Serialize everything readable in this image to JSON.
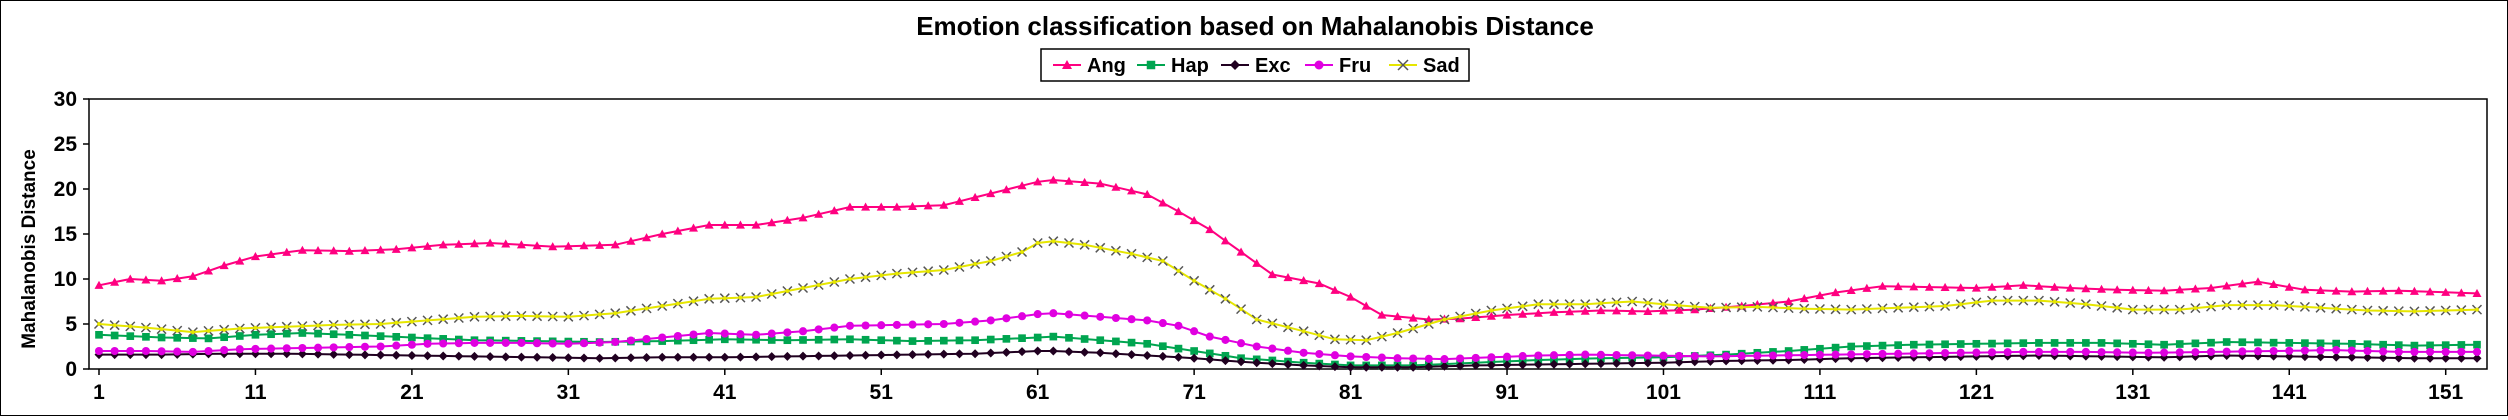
{
  "chart_data": {
    "type": "line",
    "title": "Emotion classification based on Mahalanobis Distance",
    "xlabel": "",
    "ylabel": "Mahalanobis  Distance",
    "xlim": [
      1,
      153
    ],
    "ylim": [
      0,
      30
    ],
    "yticks": [
      0,
      5,
      10,
      15,
      20,
      25,
      30
    ],
    "xticks": [
      1,
      11,
      21,
      31,
      41,
      51,
      61,
      71,
      81,
      91,
      101,
      111,
      121,
      131,
      141,
      151
    ],
    "grid": false,
    "legend_position": "top-center",
    "series": [
      {
        "name": "Ang",
        "color": "#ff0080",
        "marker": "triangle",
        "points": [
          [
            1,
            9.3
          ],
          [
            3,
            10
          ],
          [
            5,
            9.8
          ],
          [
            7,
            10.3
          ],
          [
            9,
            11.5
          ],
          [
            11,
            12.5
          ],
          [
            14,
            13.2
          ],
          [
            17,
            13.1
          ],
          [
            20,
            13.3
          ],
          [
            23,
            13.8
          ],
          [
            26,
            14
          ],
          [
            30,
            13.6
          ],
          [
            34,
            13.8
          ],
          [
            37,
            15
          ],
          [
            40,
            16
          ],
          [
            43,
            16
          ],
          [
            46,
            16.8
          ],
          [
            49,
            18
          ],
          [
            52,
            18
          ],
          [
            55,
            18.2
          ],
          [
            58,
            19.5
          ],
          [
            61,
            20.8
          ],
          [
            62,
            21
          ],
          [
            65,
            20.6
          ],
          [
            68,
            19.4
          ],
          [
            70,
            17.5
          ],
          [
            72,
            15.5
          ],
          [
            74,
            13
          ],
          [
            76,
            10.5
          ],
          [
            79,
            9.5
          ],
          [
            81,
            8
          ],
          [
            83,
            6
          ],
          [
            86,
            5.5
          ],
          [
            88,
            5.6
          ],
          [
            91,
            6
          ],
          [
            94,
            6.3
          ],
          [
            97,
            6.5
          ],
          [
            100,
            6.4
          ],
          [
            103,
            6.6
          ],
          [
            106,
            7
          ],
          [
            109,
            7.5
          ],
          [
            112,
            8.5
          ],
          [
            115,
            9.2
          ],
          [
            118,
            9.1
          ],
          [
            121,
            9
          ],
          [
            124,
            9.3
          ],
          [
            127,
            9
          ],
          [
            130,
            8.8
          ],
          [
            133,
            8.7
          ],
          [
            136,
            9
          ],
          [
            139,
            9.7
          ],
          [
            142,
            8.8
          ],
          [
            145,
            8.6
          ],
          [
            148,
            8.7
          ],
          [
            153,
            8.4
          ]
        ]
      },
      {
        "name": "Hap",
        "color": "#00a550",
        "marker": "square",
        "points": [
          [
            1,
            3.8
          ],
          [
            5,
            3.5
          ],
          [
            8,
            3.4
          ],
          [
            11,
            3.8
          ],
          [
            14,
            4
          ],
          [
            17,
            3.8
          ],
          [
            21,
            3.5
          ],
          [
            25,
            3.2
          ],
          [
            29,
            3.1
          ],
          [
            33,
            3
          ],
          [
            37,
            3.1
          ],
          [
            41,
            3.3
          ],
          [
            45,
            3.2
          ],
          [
            49,
            3.3
          ],
          [
            53,
            3.1
          ],
          [
            57,
            3.2
          ],
          [
            61,
            3.5
          ],
          [
            62,
            3.6
          ],
          [
            65,
            3.2
          ],
          [
            68,
            2.8
          ],
          [
            71,
            2
          ],
          [
            74,
            1.2
          ],
          [
            78,
            0.7
          ],
          [
            81,
            0.4
          ],
          [
            85,
            0.4
          ],
          [
            89,
            0.7
          ],
          [
            93,
            1
          ],
          [
            97,
            1.2
          ],
          [
            101,
            1.3
          ],
          [
            105,
            1.6
          ],
          [
            109,
            2
          ],
          [
            113,
            2.5
          ],
          [
            117,
            2.7
          ],
          [
            121,
            2.8
          ],
          [
            125,
            2.9
          ],
          [
            129,
            2.9
          ],
          [
            133,
            2.7
          ],
          [
            137,
            3
          ],
          [
            141,
            2.9
          ],
          [
            145,
            2.8
          ],
          [
            149,
            2.6
          ],
          [
            153,
            2.7
          ]
        ]
      },
      {
        "name": "Exc",
        "color": "#200020",
        "marker": "diamond",
        "points": [
          [
            1,
            1.6
          ],
          [
            5,
            1.6
          ],
          [
            9,
            1.7
          ],
          [
            13,
            1.7
          ],
          [
            17,
            1.6
          ],
          [
            21,
            1.5
          ],
          [
            25,
            1.4
          ],
          [
            29,
            1.3
          ],
          [
            33,
            1.2
          ],
          [
            37,
            1.3
          ],
          [
            41,
            1.3
          ],
          [
            45,
            1.4
          ],
          [
            49,
            1.5
          ],
          [
            53,
            1.6
          ],
          [
            57,
            1.7
          ],
          [
            61,
            2
          ],
          [
            62,
            2
          ],
          [
            65,
            1.8
          ],
          [
            68,
            1.5
          ],
          [
            71,
            1.2
          ],
          [
            74,
            0.8
          ],
          [
            78,
            0.4
          ],
          [
            81,
            0.2
          ],
          [
            85,
            0.2
          ],
          [
            89,
            0.4
          ],
          [
            93,
            0.5
          ],
          [
            97,
            0.6
          ],
          [
            101,
            0.7
          ],
          [
            105,
            0.9
          ],
          [
            109,
            1
          ],
          [
            113,
            1.2
          ],
          [
            117,
            1.3
          ],
          [
            121,
            1.4
          ],
          [
            125,
            1.5
          ],
          [
            129,
            1.4
          ],
          [
            133,
            1.3
          ],
          [
            137,
            1.5
          ],
          [
            141,
            1.4
          ],
          [
            145,
            1.3
          ],
          [
            149,
            1.2
          ],
          [
            153,
            1.2
          ]
        ]
      },
      {
        "name": "Fru",
        "color": "#e000e0",
        "marker": "circle",
        "points": [
          [
            1,
            2
          ],
          [
            4,
            2
          ],
          [
            7,
            1.9
          ],
          [
            10,
            2.2
          ],
          [
            13,
            2.3
          ],
          [
            16,
            2.4
          ],
          [
            19,
            2.5
          ],
          [
            22,
            2.8
          ],
          [
            25,
            2.9
          ],
          [
            28,
            2.9
          ],
          [
            31,
            2.8
          ],
          [
            34,
            3
          ],
          [
            37,
            3.5
          ],
          [
            40,
            4
          ],
          [
            43,
            3.8
          ],
          [
            46,
            4.2
          ],
          [
            49,
            4.8
          ],
          [
            52,
            4.9
          ],
          [
            55,
            5
          ],
          [
            58,
            5.4
          ],
          [
            61,
            6.1
          ],
          [
            62,
            6.2
          ],
          [
            65,
            5.8
          ],
          [
            68,
            5.4
          ],
          [
            70,
            4.8
          ],
          [
            72,
            3.6
          ],
          [
            75,
            2.5
          ],
          [
            78,
            1.8
          ],
          [
            81,
            1.4
          ],
          [
            84,
            1.2
          ],
          [
            87,
            1.1
          ],
          [
            90,
            1.3
          ],
          [
            93,
            1.5
          ],
          [
            96,
            1.6
          ],
          [
            100,
            1.5
          ],
          [
            104,
            1.4
          ],
          [
            108,
            1.5
          ],
          [
            112,
            1.6
          ],
          [
            116,
            1.7
          ],
          [
            120,
            1.8
          ],
          [
            124,
            1.9
          ],
          [
            128,
            1.9
          ],
          [
            132,
            1.8
          ],
          [
            136,
            1.9
          ],
          [
            140,
            2
          ],
          [
            144,
            2.1
          ],
          [
            148,
            1.9
          ],
          [
            153,
            1.9
          ]
        ]
      },
      {
        "name": "Sad",
        "color": "#e6e600",
        "marker": "x",
        "points": [
          [
            1,
            5
          ],
          [
            4,
            4.6
          ],
          [
            7,
            4.1
          ],
          [
            10,
            4.5
          ],
          [
            13,
            4.7
          ],
          [
            16,
            4.9
          ],
          [
            19,
            5
          ],
          [
            22,
            5.4
          ],
          [
            25,
            5.8
          ],
          [
            28,
            5.9
          ],
          [
            31,
            5.8
          ],
          [
            34,
            6.2
          ],
          [
            37,
            7
          ],
          [
            40,
            7.8
          ],
          [
            43,
            8
          ],
          [
            46,
            9
          ],
          [
            49,
            10
          ],
          [
            52,
            10.6
          ],
          [
            55,
            11
          ],
          [
            58,
            12
          ],
          [
            60,
            13
          ],
          [
            61,
            14
          ],
          [
            62,
            14.2
          ],
          [
            64,
            13.8
          ],
          [
            67,
            12.8
          ],
          [
            69,
            12
          ],
          [
            71,
            9.8
          ],
          [
            73,
            7.8
          ],
          [
            75,
            5.5
          ],
          [
            78,
            4.2
          ],
          [
            80,
            3.3
          ],
          [
            82,
            3.2
          ],
          [
            84,
            4
          ],
          [
            87,
            5.5
          ],
          [
            90,
            6.5
          ],
          [
            93,
            7.2
          ],
          [
            96,
            7.2
          ],
          [
            99,
            7.5
          ],
          [
            101,
            7.2
          ],
          [
            104,
            6.8
          ],
          [
            107,
            6.9
          ],
          [
            110,
            6.7
          ],
          [
            113,
            6.6
          ],
          [
            116,
            6.8
          ],
          [
            119,
            7
          ],
          [
            122,
            7.6
          ],
          [
            125,
            7.6
          ],
          [
            128,
            7.2
          ],
          [
            131,
            6.6
          ],
          [
            134,
            6.6
          ],
          [
            137,
            7.1
          ],
          [
            140,
            7.1
          ],
          [
            143,
            6.8
          ],
          [
            146,
            6.5
          ],
          [
            149,
            6.4
          ],
          [
            153,
            6.6
          ]
        ]
      }
    ]
  }
}
